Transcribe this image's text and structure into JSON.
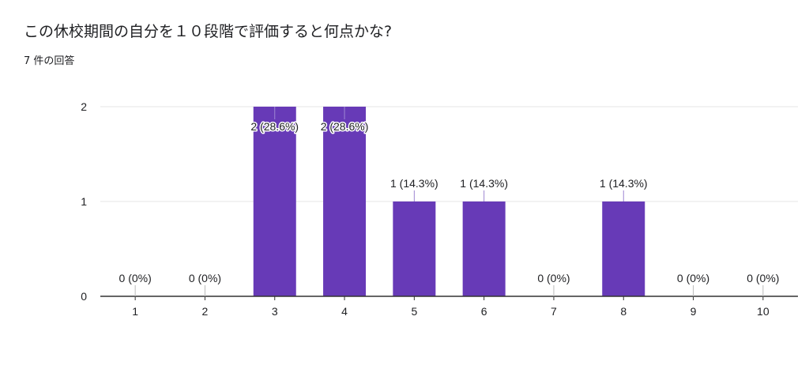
{
  "question": {
    "title": "この休校期間の自分を１０段階で評価すると何点かな?",
    "response_count": "7 件の回答"
  },
  "colors": {
    "bar": "#673ab7",
    "grid": "#e6e6e6",
    "axis": "#333333",
    "text": "#202124"
  },
  "chart_data": {
    "type": "bar",
    "categories": [
      "1",
      "2",
      "3",
      "4",
      "5",
      "6",
      "7",
      "8",
      "9",
      "10"
    ],
    "values": [
      0,
      0,
      2,
      2,
      1,
      1,
      0,
      1,
      0,
      0
    ],
    "data_labels": [
      "0 (0%)",
      "0 (0%)",
      "2 (28.6%)",
      "2 (28.6%)",
      "1 (14.3%)",
      "1 (14.3%)",
      "0 (0%)",
      "1 (14.3%)",
      "0 (0%)",
      "0 (0%)"
    ],
    "ylim": [
      0,
      2
    ],
    "yticks": [
      "0",
      "1",
      "2"
    ],
    "grid": true,
    "xlabel": "",
    "ylabel": ""
  }
}
